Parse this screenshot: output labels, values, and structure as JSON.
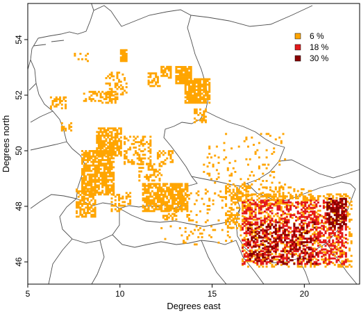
{
  "chart_data": {
    "type": "map",
    "xlabel": "Degrees east",
    "ylabel": "Degrees north",
    "xlim": [
      5,
      23
    ],
    "ylim": [
      45.2,
      55.3
    ],
    "x_ticks": [
      "5",
      "10",
      "15",
      "20"
    ],
    "y_ticks": [
      "46",
      "48",
      "50",
      "52",
      "54"
    ],
    "legend": {
      "placement": "top-right",
      "entries": [
        {
          "label": "6 %",
          "color": "#FFA500"
        },
        {
          "label": "18 %",
          "color": "#E31A1C"
        },
        {
          "label": "30 %",
          "color": "#8B0000"
        }
      ]
    },
    "regions": [
      {
        "class": "6 %",
        "lon": [
          10.0,
          10.3
        ],
        "lat": [
          53.2,
          53.6
        ],
        "density": 0.9
      },
      {
        "class": "6 %",
        "lon": [
          7.5,
          8.3
        ],
        "lat": [
          53.2,
          53.5
        ],
        "density": 0.25
      },
      {
        "class": "6 %",
        "lon": [
          9.2,
          10.3
        ],
        "lat": [
          52.0,
          52.8
        ],
        "density": 0.35
      },
      {
        "class": "6 %",
        "lon": [
          12.2,
          12.7
        ],
        "lat": [
          52.6,
          53.0
        ],
        "density": 0.75
      },
      {
        "class": "6 %",
        "lon": [
          11.5,
          12.1
        ],
        "lat": [
          52.3,
          52.8
        ],
        "density": 0.6
      },
      {
        "class": "6 %",
        "lon": [
          13.0,
          13.8
        ],
        "lat": [
          52.4,
          53.0
        ],
        "density": 0.85
      },
      {
        "class": "6 %",
        "lon": [
          13.5,
          14.8
        ],
        "lat": [
          51.7,
          52.6
        ],
        "density": 0.85
      },
      {
        "class": "6 %",
        "lon": [
          6.2,
          7.0
        ],
        "lat": [
          51.5,
          51.9
        ],
        "density": 0.5
      },
      {
        "class": "6 %",
        "lon": [
          8.0,
          9.4
        ],
        "lat": [
          51.7,
          52.1
        ],
        "density": 0.3
      },
      {
        "class": "6 %",
        "lon": [
          9.2,
          9.8
        ],
        "lat": [
          51.7,
          52.1
        ],
        "density": 0.5
      },
      {
        "class": "6 %",
        "lon": [
          14.0,
          14.6
        ],
        "lat": [
          51.0,
          51.5
        ],
        "density": 0.45
      },
      {
        "class": "6 %",
        "lon": [
          6.8,
          7.4
        ],
        "lat": [
          50.7,
          51.0
        ],
        "density": 0.55
      },
      {
        "class": "6 %",
        "lon": [
          8.7,
          10.0
        ],
        "lat": [
          49.8,
          50.8
        ],
        "density": 0.75
      },
      {
        "class": "6 %",
        "lon": [
          7.9,
          9.6
        ],
        "lat": [
          48.4,
          50.0
        ],
        "density": 0.75
      },
      {
        "class": "6 %",
        "lon": [
          7.6,
          8.6
        ],
        "lat": [
          47.6,
          48.6
        ],
        "density": 0.65
      },
      {
        "class": "6 %",
        "lon": [
          10.2,
          11.6
        ],
        "lat": [
          49.5,
          50.5
        ],
        "density": 0.4
      },
      {
        "class": "6 %",
        "lon": [
          12.0,
          12.8
        ],
        "lat": [
          49.5,
          50.0
        ],
        "density": 0.4
      },
      {
        "class": "6 %",
        "lon": [
          11.0,
          12.2
        ],
        "lat": [
          48.9,
          49.5
        ],
        "density": 0.45
      },
      {
        "class": "6 %",
        "lon": [
          9.5,
          10.5
        ],
        "lat": [
          47.8,
          48.5
        ],
        "density": 0.35
      },
      {
        "class": "6 %",
        "lon": [
          11.2,
          13.6
        ],
        "lat": [
          47.8,
          48.8
        ],
        "density": 0.8
      },
      {
        "class": "6 %",
        "lon": [
          12.3,
          13.0
        ],
        "lat": [
          47.5,
          47.9
        ],
        "density": 0.55
      },
      {
        "class": "6 %",
        "lon": [
          13.4,
          16.6
        ],
        "lat": [
          47.4,
          48.6
        ],
        "density": 0.1
      },
      {
        "class": "6 %",
        "lon": [
          15.7,
          17.2
        ],
        "lat": [
          47.2,
          48.8
        ],
        "density": 0.4
      },
      {
        "class": "6 %",
        "lon": [
          14.5,
          19.0
        ],
        "lat": [
          48.3,
          50.6
        ],
        "density": 0.06
      },
      {
        "class": "6 %",
        "lon": [
          17.5,
          20.5
        ],
        "lat": [
          48.0,
          48.7
        ],
        "density": 0.3
      },
      {
        "class": "6 %",
        "lon": [
          12.0,
          16.5
        ],
        "lat": [
          46.6,
          47.3
        ],
        "density": 0.07
      },
      {
        "class": "6 %",
        "lon": [
          16.6,
          22.6
        ],
        "lat": [
          45.8,
          48.4
        ],
        "density": 0.3
      },
      {
        "class": "18 %",
        "lon": [
          16.6,
          22.3
        ],
        "lat": [
          45.9,
          48.2
        ],
        "density": 0.35
      },
      {
        "class": "30 %",
        "lon": [
          21.2,
          22.3
        ],
        "lat": [
          47.2,
          48.3
        ],
        "density": 0.55
      },
      {
        "class": "30 %",
        "lon": [
          16.9,
          18.5
        ],
        "lat": [
          46.0,
          47.3
        ],
        "density": 0.3
      },
      {
        "class": "30 %",
        "lon": [
          18.5,
          20.7
        ],
        "lat": [
          45.9,
          47.4
        ],
        "density": 0.2
      }
    ]
  }
}
